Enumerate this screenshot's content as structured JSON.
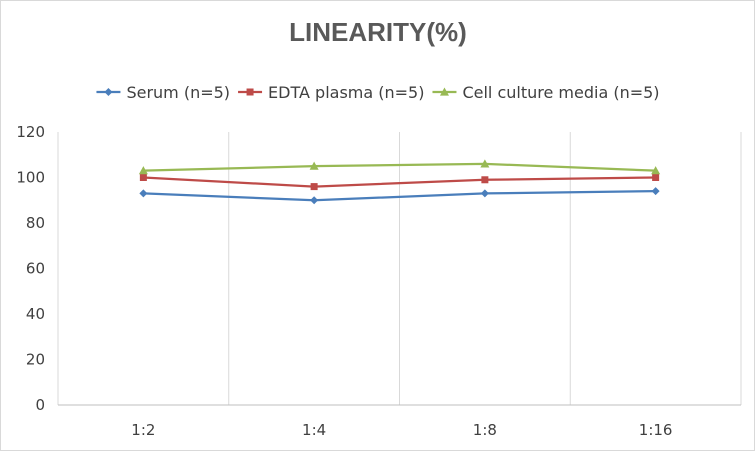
{
  "chart_data": {
    "type": "line",
    "title": "LINEARITY(%)",
    "xlabel": "",
    "ylabel": "",
    "categories": [
      "1:2",
      "1:4",
      "1:8",
      "1:16"
    ],
    "ylim": [
      0,
      120
    ],
    "yticks": [
      0,
      20,
      40,
      60,
      80,
      100,
      120
    ],
    "grid": "vertical",
    "legend_position": "top",
    "series": [
      {
        "name": "Serum (n=5)",
        "values": [
          93,
          90,
          93,
          94
        ],
        "color": "#4a7ebb",
        "marker": "diamond"
      },
      {
        "name": "EDTA plasma (n=5)",
        "values": [
          100,
          96,
          99,
          100
        ],
        "color": "#be4b48",
        "marker": "square"
      },
      {
        "name": "Cell culture media (n=5)",
        "values": [
          103,
          105,
          106,
          103
        ],
        "color": "#98b954",
        "marker": "triangle"
      }
    ]
  }
}
